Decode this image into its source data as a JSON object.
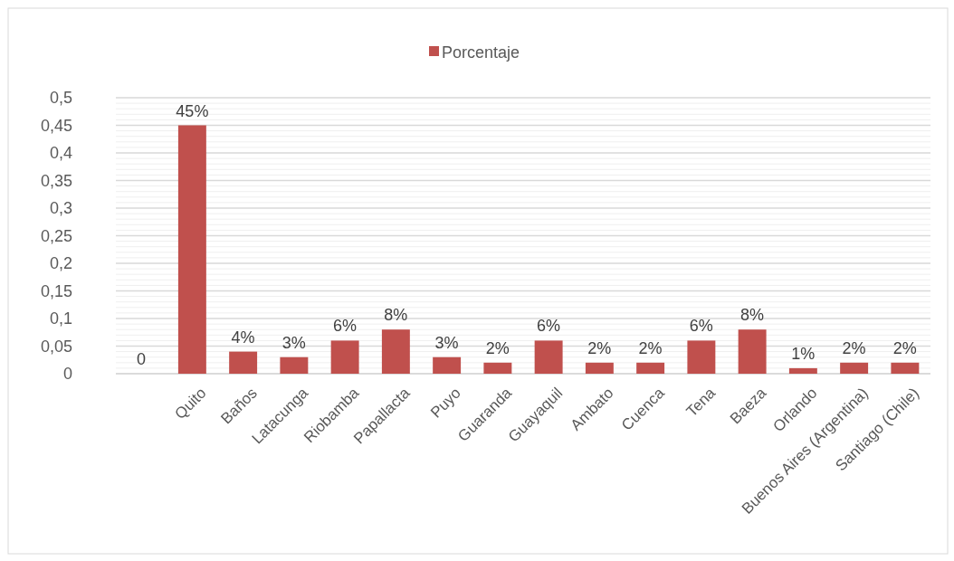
{
  "chart_data": {
    "type": "bar",
    "categories": [
      null,
      "Quito",
      "Baños",
      "Latacunga",
      "Riobamba",
      "Papallacta",
      "Puyo",
      "Guaranda",
      "Guayaquil",
      "Ambato",
      "Cuenca",
      "Tena",
      "Baeza",
      "Orlando",
      "Buenos Aires (Argentina)",
      "Santiago (Chile)"
    ],
    "series": [
      {
        "name": "Porcentaje",
        "color": "#c0504d",
        "values": [
          0,
          0.45,
          0.04,
          0.03,
          0.06,
          0.08,
          0.03,
          0.02,
          0.06,
          0.02,
          0.02,
          0.06,
          0.08,
          0.01,
          0.02,
          0.02
        ],
        "value_labels": [
          "0",
          "45%",
          "4%",
          "3%",
          "6%",
          "8%",
          "3%",
          "2%",
          "6%",
          "2%",
          "2%",
          "6%",
          "8%",
          "1%",
          "2%",
          "2%"
        ]
      }
    ],
    "ylim": [
      0,
      0.5
    ],
    "yticks": [
      {
        "value": 0,
        "label": "0"
      },
      {
        "value": 0.01,
        "label": null
      },
      {
        "value": 0.02,
        "label": null
      },
      {
        "value": 0.03,
        "label": null
      },
      {
        "value": 0.04,
        "label": null
      },
      {
        "value": 0.05,
        "label": "0,05"
      },
      {
        "value": 0.06,
        "label": null
      },
      {
        "value": 0.07,
        "label": null
      },
      {
        "value": 0.08,
        "label": null
      },
      {
        "value": 0.09,
        "label": null
      },
      {
        "value": 0.1,
        "label": "0,1"
      },
      {
        "value": 0.11,
        "label": null
      },
      {
        "value": 0.12,
        "label": null
      },
      {
        "value": 0.13,
        "label": null
      },
      {
        "value": 0.14,
        "label": null
      },
      {
        "value": 0.15,
        "label": "0,15"
      },
      {
        "value": 0.16,
        "label": null
      },
      {
        "value": 0.17,
        "label": null
      },
      {
        "value": 0.18,
        "label": null
      },
      {
        "value": 0.19,
        "label": null
      },
      {
        "value": 0.2,
        "label": "0,2"
      },
      {
        "value": 0.21,
        "label": null
      },
      {
        "value": 0.22,
        "label": null
      },
      {
        "value": 0.23,
        "label": null
      },
      {
        "value": 0.24,
        "label": null
      },
      {
        "value": 0.25,
        "label": "0,25"
      },
      {
        "value": 0.26,
        "label": null
      },
      {
        "value": 0.27,
        "label": null
      },
      {
        "value": 0.28,
        "label": null
      },
      {
        "value": 0.29,
        "label": null
      },
      {
        "value": 0.3,
        "label": "0,3"
      },
      {
        "value": 0.31,
        "label": null
      },
      {
        "value": 0.32,
        "label": null
      },
      {
        "value": 0.33,
        "label": null
      },
      {
        "value": 0.34,
        "label": null
      },
      {
        "value": 0.35,
        "label": "0,35"
      },
      {
        "value": 0.36,
        "label": null
      },
      {
        "value": 0.37,
        "label": null
      },
      {
        "value": 0.38,
        "label": null
      },
      {
        "value": 0.39,
        "label": null
      },
      {
        "value": 0.4,
        "label": "0,4"
      },
      {
        "value": 0.41,
        "label": null
      },
      {
        "value": 0.42,
        "label": null
      },
      {
        "value": 0.43,
        "label": null
      },
      {
        "value": 0.44,
        "label": null
      },
      {
        "value": 0.45,
        "label": "0,45"
      },
      {
        "value": 0.46,
        "label": null
      },
      {
        "value": 0.47,
        "label": null
      },
      {
        "value": 0.48,
        "label": null
      },
      {
        "value": 0.49,
        "label": null
      },
      {
        "value": 0.5,
        "label": "0,5"
      }
    ],
    "grid": "y",
    "legend": "top"
  }
}
